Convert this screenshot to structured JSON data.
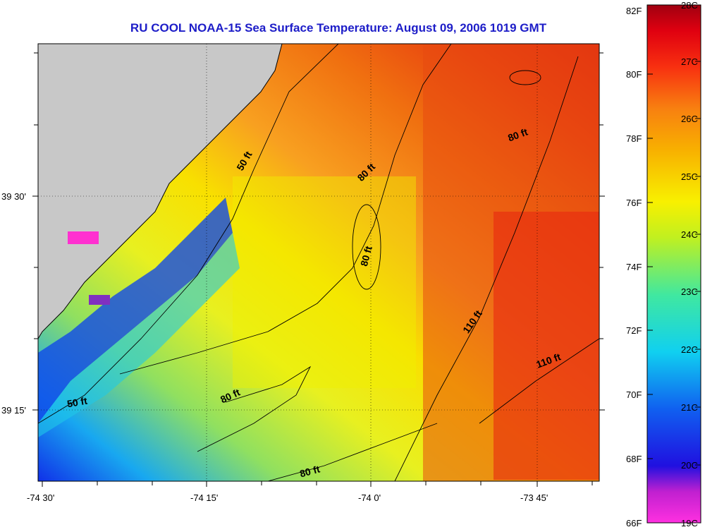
{
  "title": "RU COOL  NOAA-15  Sea Surface Temperature:  August 09, 2006 1019 GMT",
  "map": {
    "lon_labels": [
      "-74 30'",
      "-74 15'",
      "-74 0'",
      "-73 45'"
    ],
    "lat_labels": [
      "39 30'",
      "39 15'"
    ],
    "contour_labels": [
      "50 ft",
      "50 ft",
      "80 ft",
      "80 ft",
      "80 ft",
      "80 ft",
      "80 ft",
      "110 ft",
      "110 ft"
    ]
  },
  "colorbar": {
    "f_labels": [
      "82F",
      "80F",
      "78F",
      "76F",
      "74F",
      "72F",
      "70F",
      "68F",
      "66F"
    ],
    "c_labels": [
      "28C",
      "27C",
      "26C",
      "25C",
      "24C",
      "23C",
      "22C",
      "21C",
      "20C",
      "19C"
    ]
  },
  "colors": {
    "land": "#c8c8c8",
    "title": "#1d1dc8",
    "warm": "#e83010",
    "cold": "#1030e8"
  }
}
